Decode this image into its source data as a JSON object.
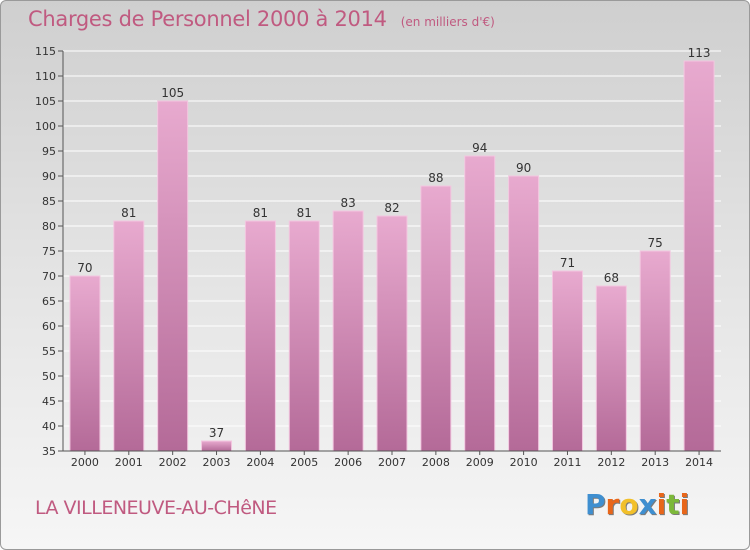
{
  "header": {
    "title": "Charges de Personnel 2000 à 2014",
    "subtitle": "(en milliers d'€)"
  },
  "footer": {
    "town": "LA VILLENEUVE-AU-CHêNE",
    "logo_letters": [
      "P",
      "r",
      "o",
      "x",
      "i",
      "t",
      "i"
    ]
  },
  "colors": {
    "title": "#c05a80",
    "bar_top": "#e8aacf",
    "bar_bottom": "#b46a98",
    "logo": [
      "#3f8fd0",
      "#e8661a",
      "#f2c02a",
      "#3f8fd0",
      "#e8661a",
      "#7cb83a",
      "#e8661a"
    ]
  },
  "chart_data": {
    "type": "bar",
    "categories": [
      "2000",
      "2001",
      "2002",
      "2003",
      "2004",
      "2005",
      "2006",
      "2007",
      "2008",
      "2009",
      "2010",
      "2011",
      "2012",
      "2013",
      "2014"
    ],
    "values": [
      70,
      81,
      105,
      37,
      81,
      81,
      83,
      82,
      88,
      94,
      90,
      71,
      68,
      75,
      113
    ],
    "ylim": [
      35,
      115
    ],
    "yticks": [
      35,
      40,
      45,
      50,
      55,
      60,
      65,
      70,
      75,
      80,
      85,
      90,
      95,
      100,
      105,
      110,
      115
    ],
    "grid": true,
    "data_labels": true
  }
}
